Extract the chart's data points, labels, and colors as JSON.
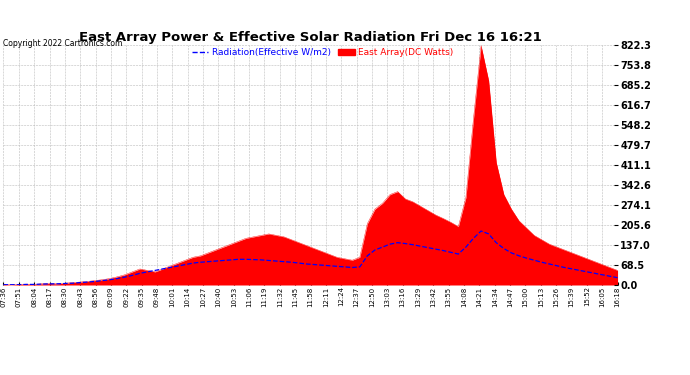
{
  "title": "East Array Power & Effective Solar Radiation Fri Dec 16 16:21",
  "copyright": "Copyright 2022 Cartronics.com",
  "legend_radiation": "Radiation(Effective W/m2)",
  "legend_array": "East Array(DC Watts)",
  "ylabel_right_values": [
    822.3,
    753.8,
    685.2,
    616.7,
    548.2,
    479.7,
    411.1,
    342.6,
    274.1,
    205.6,
    137.0,
    68.5,
    0.0
  ],
  "ymax": 822.3,
  "ymin": 0.0,
  "background_color": "#ffffff",
  "plot_bg_color": "#ffffff",
  "grid_color": "#bbbbbb",
  "radiation_color": "#0000ff",
  "array_color": "#ff0000",
  "title_color": "#000000",
  "copyright_color": "#000000",
  "xtick_labels": [
    "07:36",
    "07:51",
    "08:04",
    "08:17",
    "08:30",
    "08:43",
    "08:56",
    "09:09",
    "09:22",
    "09:35",
    "09:48",
    "10:01",
    "10:14",
    "10:27",
    "10:40",
    "10:53",
    "11:06",
    "11:19",
    "11:32",
    "11:45",
    "11:58",
    "12:11",
    "12:24",
    "12:37",
    "12:50",
    "13:03",
    "13:16",
    "13:29",
    "13:42",
    "13:55",
    "14:08",
    "14:21",
    "14:34",
    "14:47",
    "15:00",
    "15:13",
    "15:26",
    "15:39",
    "15:52",
    "16:05",
    "16:18"
  ],
  "num_points": 82,
  "array_power": [
    2,
    1,
    2,
    3,
    2,
    4,
    5,
    4,
    6,
    8,
    10,
    12,
    15,
    18,
    22,
    28,
    35,
    45,
    55,
    50,
    45,
    55,
    65,
    75,
    85,
    95,
    100,
    110,
    120,
    130,
    140,
    150,
    160,
    165,
    170,
    175,
    170,
    165,
    155,
    145,
    135,
    125,
    115,
    105,
    95,
    90,
    85,
    95,
    210,
    260,
    280,
    310,
    320,
    295,
    285,
    270,
    255,
    240,
    228,
    215,
    200,
    300,
    570,
    820,
    700,
    420,
    310,
    260,
    220,
    195,
    170,
    155,
    140,
    130,
    120,
    110,
    100,
    90,
    80,
    70,
    60,
    50
  ],
  "radiation": [
    1,
    1,
    1,
    2,
    2,
    3,
    4,
    4,
    5,
    6,
    8,
    10,
    12,
    15,
    18,
    22,
    27,
    33,
    40,
    45,
    50,
    55,
    60,
    65,
    70,
    75,
    78,
    80,
    82,
    84,
    86,
    88,
    88,
    87,
    86,
    84,
    82,
    80,
    78,
    75,
    72,
    70,
    68,
    66,
    64,
    62,
    60,
    62,
    100,
    120,
    130,
    140,
    145,
    142,
    138,
    133,
    128,
    123,
    118,
    112,
    106,
    130,
    160,
    185,
    175,
    145,
    125,
    110,
    100,
    92,
    85,
    78,
    72,
    66,
    60,
    55,
    50,
    45,
    40,
    35,
    30,
    25
  ]
}
